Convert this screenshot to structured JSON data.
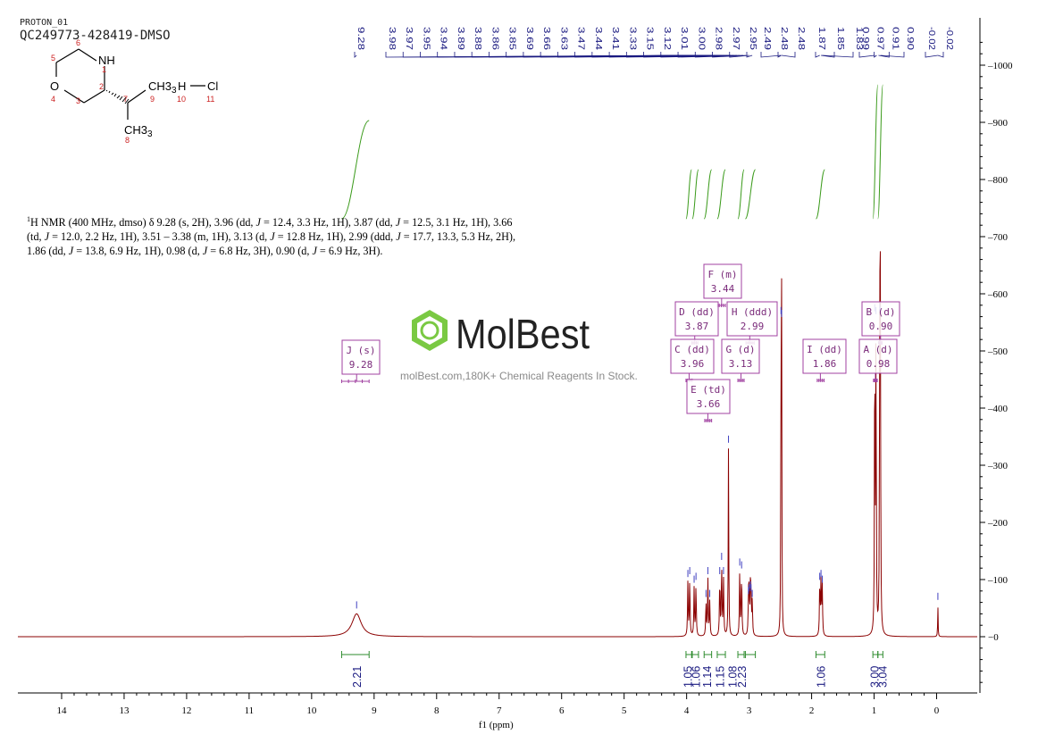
{
  "header": {
    "experiment": "PROTON_01",
    "sample": "QC249773-428419-DMSO"
  },
  "description": {
    "nucleus_sup": "1",
    "segments": [
      [
        "t",
        "H NMR (400 MHz, dmso) δ 9.28 (s, 2H), 3.96 (dd, "
      ],
      [
        "i",
        "J"
      ],
      [
        "t",
        " = 12.4, 3.3 Hz, 1H), 3.87 (dd, "
      ],
      [
        "i",
        "J"
      ],
      [
        "t",
        " = 12.5, 3.1 Hz, 1H), 3.66 (td, "
      ],
      [
        "i",
        "J"
      ],
      [
        "t",
        " = 12.0, 2.2 Hz, 1H), 3.51 – 3.38 (m, 1H), 3.13 (d, "
      ],
      [
        "i",
        "J"
      ],
      [
        "t",
        " = 12.8 Hz, 1H), 2.99 (ddd, "
      ],
      [
        "i",
        "J"
      ],
      [
        "t",
        " = 17.7, 13.3, 5.3 Hz, 2H), 1.86 (dd, "
      ],
      [
        "i",
        "J"
      ],
      [
        "t",
        " = 13.8, 6.9 Hz, 1H), 0.98 (d, "
      ],
      [
        "i",
        "J"
      ],
      [
        "t",
        " = 6.8 Hz, 3H), 0.90 (d, "
      ],
      [
        "i",
        "J"
      ],
      [
        "t",
        " = 6.9 Hz, 3H).\n"
      ]
    ]
  },
  "watermark": {
    "brand": "MolBest",
    "tagline": "molBest.com,180K+ Chemical Reagents In Stock."
  },
  "molecule": {
    "atoms": [
      "O",
      "NH",
      "CH3",
      "CH3",
      "H",
      "Cl"
    ],
    "subs": [
      "3"
    ],
    "numbers": [
      "1",
      "2",
      "3",
      "4",
      "5",
      "6",
      "7",
      "8",
      "9",
      "10",
      "11"
    ]
  },
  "colors": {
    "spectrum": "#8b0000",
    "peak_labels": "#1a1a80",
    "integral_curve": "#3a9a1a",
    "integral_bracket": "#2e8b2e",
    "multiplet_box": "#a040a0",
    "atom_numbers": "#cc2222"
  },
  "chart_data": {
    "type": "line",
    "xlabel": "f1 (ppm)",
    "xlim": [
      14.7,
      -0.65
    ],
    "ylim": [
      -100,
      1080
    ],
    "x_ticks": [
      14,
      13,
      12,
      11,
      10,
      9,
      8,
      7,
      6,
      5,
      4,
      3,
      2,
      1,
      0
    ],
    "y_ticks": [
      0,
      100,
      200,
      300,
      400,
      500,
      600,
      700,
      800,
      900,
      1000
    ],
    "peak_labels": [
      "9.28",
      "3.98",
      "3.97",
      "3.95",
      "3.94",
      "3.89",
      "3.88",
      "3.86",
      "3.85",
      "3.69",
      "3.66",
      "3.63",
      "3.47",
      "3.44",
      "3.41",
      "3.33",
      "3.15",
      "3.12",
      "3.01",
      "3.00",
      "2.98",
      "2.97",
      "2.95",
      "2.49",
      "2.48",
      "2.48",
      "1.87",
      "1.85",
      "1.83",
      "0.99",
      "0.97",
      "0.91",
      "0.90",
      "-0.02",
      "-0.02"
    ],
    "peaks": [
      {
        "ppm": 9.28,
        "h": 40,
        "w": 0.09
      },
      {
        "ppm": 3.98,
        "h": 95,
        "w": 0.006
      },
      {
        "ppm": 3.95,
        "h": 100,
        "w": 0.006
      },
      {
        "ppm": 3.88,
        "h": 85,
        "w": 0.006
      },
      {
        "ppm": 3.85,
        "h": 90,
        "w": 0.006
      },
      {
        "ppm": 3.69,
        "h": 60,
        "w": 0.006
      },
      {
        "ppm": 3.66,
        "h": 100,
        "w": 0.006
      },
      {
        "ppm": 3.63,
        "h": 60,
        "w": 0.006
      },
      {
        "ppm": 3.47,
        "h": 100,
        "w": 0.006
      },
      {
        "ppm": 3.44,
        "h": 125,
        "w": 0.006
      },
      {
        "ppm": 3.41,
        "h": 100,
        "w": 0.006
      },
      {
        "ppm": 3.33,
        "h": 330,
        "w": 0.005
      },
      {
        "ppm": 3.15,
        "h": 115,
        "w": 0.006
      },
      {
        "ppm": 3.12,
        "h": 110,
        "w": 0.006
      },
      {
        "ppm": 3.01,
        "h": 65,
        "w": 0.006
      },
      {
        "ppm": 3.0,
        "h": 70,
        "w": 0.006
      },
      {
        "ppm": 2.98,
        "h": 75,
        "w": 0.006
      },
      {
        "ppm": 2.97,
        "h": 70,
        "w": 0.006
      },
      {
        "ppm": 2.95,
        "h": 60,
        "w": 0.006
      },
      {
        "ppm": 2.49,
        "h": 555,
        "w": 0.004
      },
      {
        "ppm": 2.48,
        "h": 550,
        "w": 0.004
      },
      {
        "ppm": 1.87,
        "h": 90,
        "w": 0.006
      },
      {
        "ppm": 1.85,
        "h": 95,
        "w": 0.006
      },
      {
        "ppm": 1.83,
        "h": 85,
        "w": 0.006
      },
      {
        "ppm": 0.99,
        "h": 560,
        "w": 0.005
      },
      {
        "ppm": 0.97,
        "h": 555,
        "w": 0.005
      },
      {
        "ppm": 0.91,
        "h": 560,
        "w": 0.005
      },
      {
        "ppm": 0.9,
        "h": 555,
        "w": 0.005
      },
      {
        "ppm": -0.02,
        "h": 55,
        "w": 0.004
      }
    ],
    "multiplets": [
      {
        "label": "J (s)",
        "shift": "9.28",
        "at": 9.28,
        "range": [
          9.52,
          9.08
        ]
      },
      {
        "label": "F (m)",
        "shift": "3.44",
        "at": 3.44,
        "range": [
          3.51,
          3.38
        ]
      },
      {
        "label": "D (dd)",
        "shift": "3.87",
        "at": 3.87,
        "range": [
          3.92,
          3.82
        ]
      },
      {
        "label": "H (ddd)",
        "shift": "2.99",
        "at": 2.99,
        "range": [
          3.05,
          2.92
        ]
      },
      {
        "label": "C (dd)",
        "shift": "3.96",
        "at": 3.96,
        "range": [
          4.01,
          3.91
        ]
      },
      {
        "label": "G (d)",
        "shift": "3.13",
        "at": 3.13,
        "range": [
          3.18,
          3.08
        ]
      },
      {
        "label": "E (td)",
        "shift": "3.66",
        "at": 3.66,
        "range": [
          3.71,
          3.6
        ]
      },
      {
        "label": "I (dd)",
        "shift": "1.86",
        "at": 1.86,
        "range": [
          1.91,
          1.8
        ]
      },
      {
        "label": "B (d)",
        "shift": "0.90",
        "at": 0.9,
        "range": [
          0.93,
          0.87
        ]
      },
      {
        "label": "A (d)",
        "shift": "0.98",
        "at": 0.98,
        "range": [
          1.01,
          0.95
        ]
      }
    ],
    "integrals": [
      {
        "value": "2.21",
        "range": [
          9.52,
          9.08
        ],
        "pos": 9.28
      },
      {
        "value": "1.05",
        "range": [
          4.01,
          3.92
        ],
        "pos": 3.99
      },
      {
        "value": "1.06",
        "range": [
          3.91,
          3.81
        ],
        "pos": 3.86
      },
      {
        "value": "1.14",
        "range": [
          3.72,
          3.6
        ],
        "pos": 3.68
      },
      {
        "value": "1.15",
        "range": [
          3.51,
          3.38
        ],
        "pos": 3.47
      },
      {
        "value": "1.08",
        "range": [
          3.18,
          3.08
        ],
        "pos": 3.27
      },
      {
        "value": "2.23",
        "range": [
          3.06,
          2.9
        ],
        "pos": 3.12
      },
      {
        "value": "1.06",
        "range": [
          1.93,
          1.79
        ],
        "pos": 1.86
      },
      {
        "value": "3.00",
        "range": [
          1.02,
          0.94
        ],
        "pos": 1.0
      },
      {
        "value": "3.04",
        "range": [
          0.94,
          0.86
        ],
        "pos": 0.87
      }
    ]
  }
}
